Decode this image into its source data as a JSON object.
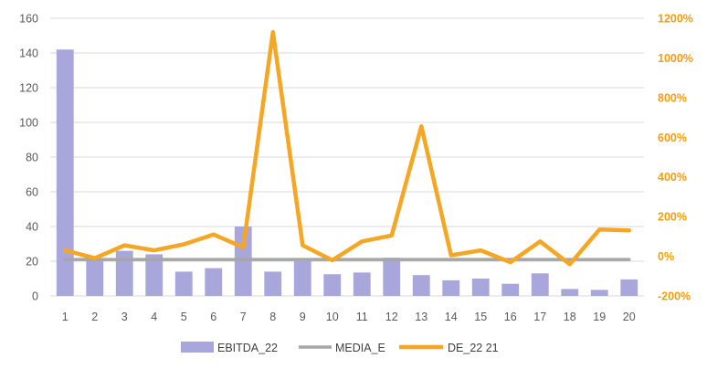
{
  "chart_data": {
    "type": "bar",
    "categories": [
      "1",
      "2",
      "3",
      "4",
      "5",
      "6",
      "7",
      "8",
      "9",
      "10",
      "11",
      "12",
      "13",
      "14",
      "15",
      "16",
      "17",
      "18",
      "19",
      "20"
    ],
    "series": [
      {
        "name": "EBITDA_22",
        "type": "bar",
        "axis": "left",
        "color": "#a9a6dc",
        "values": [
          142,
          21,
          26,
          24,
          14,
          16,
          40,
          14,
          20,
          12.5,
          13.5,
          22,
          12,
          9,
          10,
          7,
          13,
          4,
          3.5,
          9.5
        ]
      },
      {
        "name": "MEDIA_E",
        "type": "line",
        "axis": "left",
        "color": "#a6a6a6",
        "values": [
          21,
          21,
          21,
          21,
          21,
          21,
          21,
          21,
          21,
          21,
          21,
          21,
          21,
          21,
          21,
          21,
          21,
          21,
          21,
          21
        ]
      },
      {
        "name": "DE_22 21",
        "type": "line",
        "axis": "right",
        "color": "#f5a623",
        "values": [
          30,
          -10,
          55,
          30,
          60,
          110,
          45,
          1130,
          55,
          -20,
          75,
          105,
          655,
          5,
          30,
          -30,
          75,
          -40,
          135,
          130
        ]
      }
    ],
    "y_left": {
      "min": 0,
      "max": 160,
      "ticks": [
        0,
        20,
        40,
        60,
        80,
        100,
        120,
        140,
        160
      ],
      "tick_labels": [
        "0",
        "20",
        "40",
        "60",
        "80",
        "100",
        "120",
        "140",
        "160"
      ]
    },
    "y_right": {
      "min": -200,
      "max": 1200,
      "ticks": [
        -200,
        0,
        200,
        400,
        600,
        800,
        1000,
        1200
      ],
      "tick_labels": [
        "-200%",
        "0%",
        "200%",
        "400%",
        "600%",
        "800%",
        "1000%",
        "1200%"
      ]
    },
    "grid": true,
    "legend": {
      "position": "bottom",
      "entries": [
        "EBITDA_22",
        "MEDIA_E",
        "DE_22 21"
      ]
    },
    "title": "",
    "xlabel": "",
    "ylabel": ""
  },
  "colors": {
    "grid": "#d9d9d9",
    "left_axis_text": "#595959",
    "right_axis_text": "#f59e0b"
  }
}
